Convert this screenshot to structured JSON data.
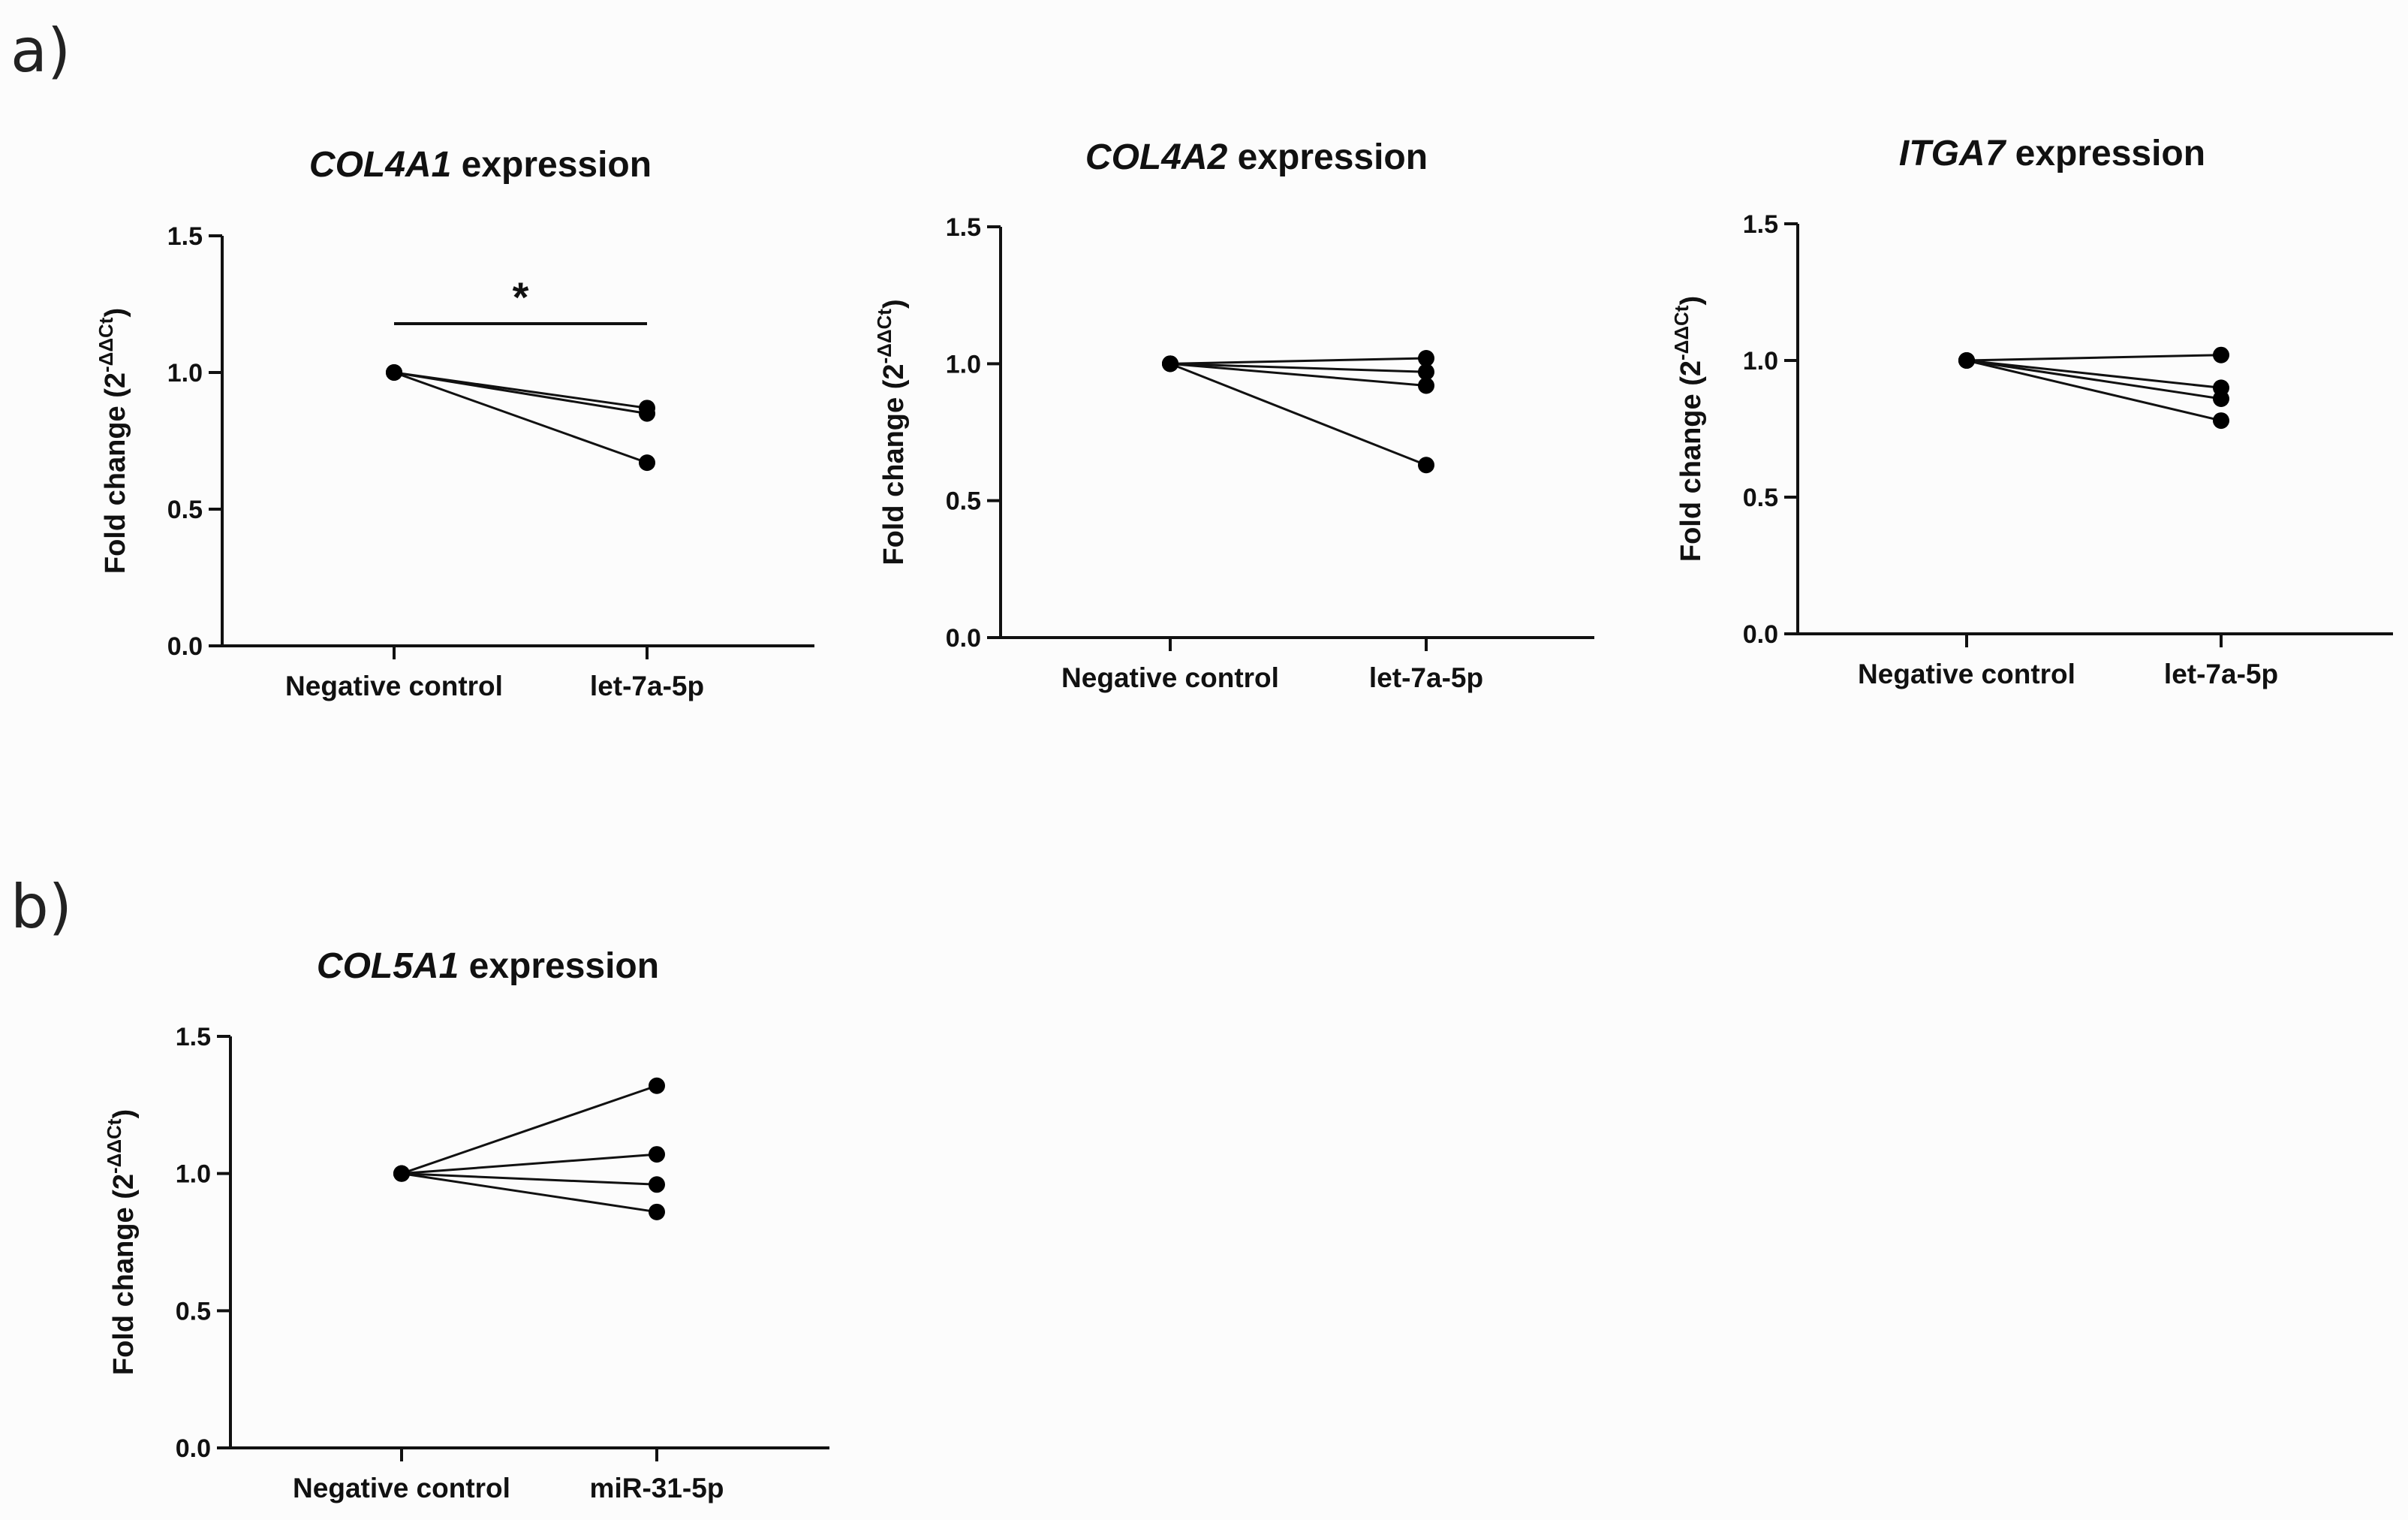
{
  "panel_labels": [
    "a)",
    "b)"
  ],
  "chart_data": [
    {
      "type": "line",
      "panel": "a)",
      "title_gene": "COL4A1",
      "title_rest": " expression",
      "ylabel": "Fold change (2",
      "ylabel_sup": "-ΔΔCt",
      "ylabel_close": ")",
      "ylim": [
        0,
        1.5
      ],
      "yticks": [
        0.0,
        0.5,
        1.0,
        1.5
      ],
      "ytick_labels": [
        "0.0",
        "0.5",
        "1.0",
        "1.5"
      ],
      "categories": [
        "Negative control",
        "let-7a-5p"
      ],
      "series": [
        {
          "values": [
            1.0,
            0.87
          ]
        },
        {
          "values": [
            1.0,
            0.85
          ]
        },
        {
          "values": [
            1.0,
            0.67
          ]
        }
      ],
      "significance": "*"
    },
    {
      "type": "line",
      "panel": "a)",
      "title_gene": "COL4A2",
      "title_rest": " expression",
      "ylabel": "Fold change (2",
      "ylabel_sup": "-ΔΔCt",
      "ylabel_close": ")",
      "ylim": [
        0,
        1.5
      ],
      "yticks": [
        0.0,
        0.5,
        1.0,
        1.5
      ],
      "ytick_labels": [
        "0.0",
        "0.5",
        "1.0",
        "1.5"
      ],
      "categories": [
        "Negative control",
        "let-7a-5p"
      ],
      "series": [
        {
          "values": [
            1.0,
            1.02
          ]
        },
        {
          "values": [
            1.0,
            0.97
          ]
        },
        {
          "values": [
            1.0,
            0.92
          ]
        },
        {
          "values": [
            1.0,
            0.63
          ]
        }
      ],
      "significance": ""
    },
    {
      "type": "line",
      "panel": "a)",
      "title_gene": "ITGA7",
      "title_rest": " expression",
      "ylabel": "Fold change (2",
      "ylabel_sup": "-ΔΔCt",
      "ylabel_close": ")",
      "ylim": [
        0,
        1.5
      ],
      "yticks": [
        0.0,
        0.5,
        1.0,
        1.5
      ],
      "ytick_labels": [
        "0.0",
        "0.5",
        "1.0",
        "1.5"
      ],
      "categories": [
        "Negative control",
        "let-7a-5p"
      ],
      "series": [
        {
          "values": [
            1.0,
            1.02
          ]
        },
        {
          "values": [
            1.0,
            0.9
          ]
        },
        {
          "values": [
            1.0,
            0.86
          ]
        },
        {
          "values": [
            1.0,
            0.78
          ]
        }
      ],
      "significance": ""
    },
    {
      "type": "line",
      "panel": "b)",
      "title_gene": "COL5A1",
      "title_rest": " expression",
      "ylabel": "Fold change (2",
      "ylabel_sup": "-ΔΔCt",
      "ylabel_close": ")",
      "ylim": [
        0,
        1.5
      ],
      "yticks": [
        0.0,
        0.5,
        1.0,
        1.5
      ],
      "ytick_labels": [
        "0.0",
        "0.5",
        "1.0",
        "1.5"
      ],
      "categories": [
        "Negative control",
        "miR-31-5p"
      ],
      "series": [
        {
          "values": [
            1.0,
            1.32
          ]
        },
        {
          "values": [
            1.0,
            1.07
          ]
        },
        {
          "values": [
            1.0,
            0.96
          ]
        },
        {
          "values": [
            1.0,
            0.86
          ]
        }
      ],
      "significance": ""
    }
  ]
}
